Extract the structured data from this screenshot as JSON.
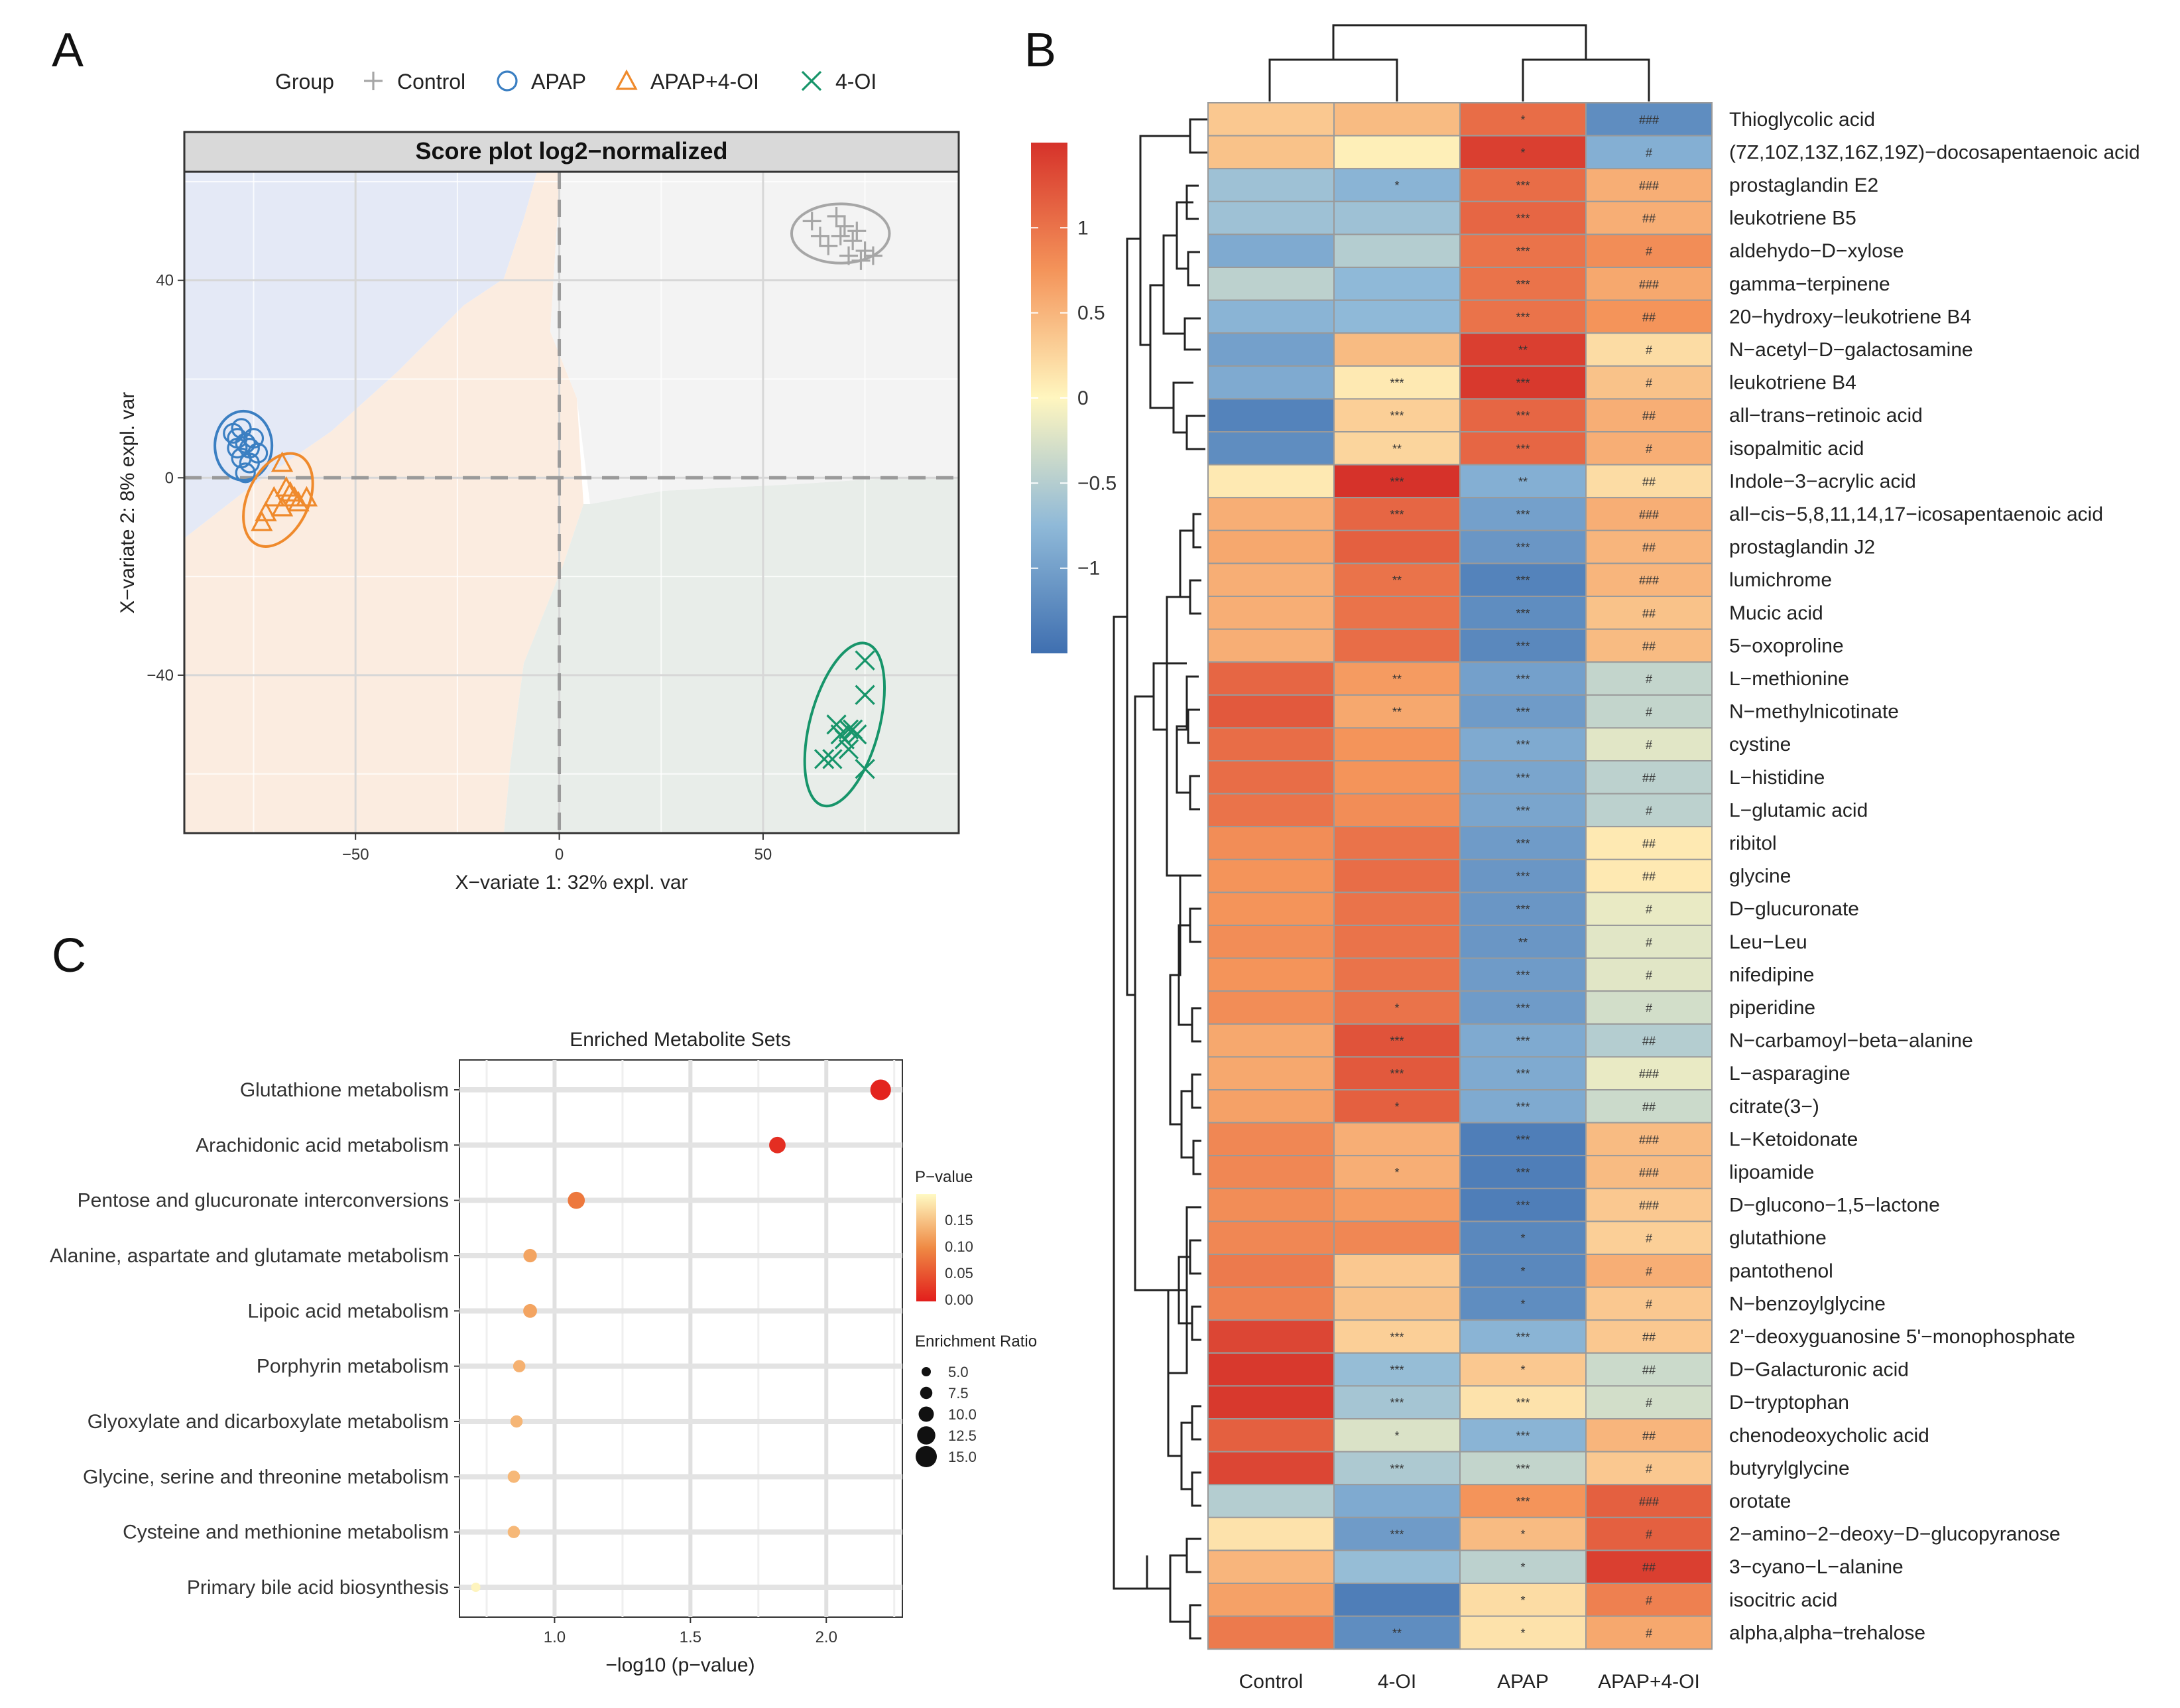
{
  "panels": {
    "a": "A",
    "b": "B",
    "c": "C"
  },
  "pca": {
    "legend_title": "Group",
    "groups": [
      {
        "name": "Control",
        "marker": "plus",
        "color": "#a6a6a6"
      },
      {
        "name": "APAP",
        "marker": "circle",
        "color": "#3b7fc2"
      },
      {
        "name": "APAP+4-OI",
        "marker": "triangle",
        "color": "#ef8a2c"
      },
      {
        "name": "4-OI",
        "marker": "cross",
        "color": "#17956a"
      }
    ],
    "title": "Score plot log2−normalized",
    "xlabel": "X−variate 1: 32% expl. var",
    "ylabel": "X−variate 2: 8% expl. var",
    "xlim": [
      -92,
      98
    ],
    "ylim": [
      -72,
      62
    ],
    "xticks": [
      -50,
      0,
      50
    ],
    "yticks": [
      40,
      0,
      -40
    ],
    "xtick_labels": [
      "−50",
      "0",
      "50"
    ],
    "ytick_labels": [
      "40",
      "0",
      "−40"
    ],
    "points": {
      "Control": [
        [
          62,
          52
        ],
        [
          64,
          49
        ],
        [
          66,
          47
        ],
        [
          68,
          53
        ],
        [
          70,
          51
        ],
        [
          72,
          48
        ],
        [
          73,
          50
        ],
        [
          75,
          46
        ],
        [
          71,
          45
        ],
        [
          74,
          44
        ],
        [
          77,
          45
        ],
        [
          69,
          49
        ]
      ],
      "APAP": [
        [
          -80,
          9
        ],
        [
          -79,
          6
        ],
        [
          -78,
          10
        ],
        [
          -78,
          4
        ],
        [
          -77,
          7
        ],
        [
          -76,
          3
        ],
        [
          -75,
          8
        ],
        [
          -76,
          6
        ],
        [
          -74,
          5
        ],
        [
          -77,
          1
        ],
        [
          -79,
          8
        ]
      ],
      "APAP+4-OI": [
        [
          -68,
          3
        ],
        [
          -70,
          -4
        ],
        [
          -72,
          -7
        ],
        [
          -68,
          -6
        ],
        [
          -66,
          -3
        ],
        [
          -64,
          -5
        ],
        [
          -62,
          -4
        ],
        [
          -73,
          -9
        ],
        [
          -67,
          -2
        ],
        [
          -65,
          -4
        ]
      ],
      "4-OI": [
        [
          75,
          -37
        ],
        [
          75,
          -44
        ],
        [
          65,
          -57
        ],
        [
          67,
          -57
        ],
        [
          70,
          -53
        ],
        [
          71,
          -51
        ],
        [
          69,
          -52
        ],
        [
          72,
          -51
        ],
        [
          71,
          -55
        ],
        [
          73,
          -52
        ],
        [
          75,
          -59
        ],
        [
          68,
          -50
        ]
      ]
    },
    "ellipses": {
      "Control": {
        "cx": 69,
        "cy": 49.5,
        "rx": 12,
        "ry": 6,
        "angle": 0
      },
      "APAP": {
        "cx": -77.5,
        "cy": 6.5,
        "rx": 7,
        "ry": 7,
        "angle": 0
      },
      "APAP+4-OI": {
        "cx": -69,
        "cy": -4.5,
        "rx": 7.5,
        "ry": 10,
        "angle": 25
      },
      "4-OI": {
        "cx": 70,
        "cy": -50,
        "rx": 8.5,
        "ry": 17,
        "angle": 15
      }
    }
  },
  "heatmap": {
    "columns": [
      "Control",
      "4-OI",
      "APAP",
      "APAP+4-OI"
    ],
    "colorbar": {
      "min": -1.5,
      "max": 1.5,
      "ticks": [
        1,
        0.5,
        0,
        -0.5,
        -1
      ],
      "tick_labels": [
        "1",
        "0.5",
        "0",
        "−0.5",
        "−1"
      ]
    },
    "rows": [
      {
        "name": "Thioglycolic acid",
        "values": [
          0.35,
          0.45,
          1.05,
          -1.2
        ],
        "marks": [
          "",
          "",
          "*",
          "###"
        ]
      },
      {
        "name": "(7Z,10Z,13Z,16Z,19Z)−docosapentaenoic acid",
        "values": [
          0.4,
          0.05,
          1.4,
          -0.85
        ],
        "marks": [
          "",
          "",
          "*",
          "#"
        ]
      },
      {
        "name": "prostaglandin E2",
        "values": [
          -0.65,
          -0.8,
          1.05,
          0.55
        ],
        "marks": [
          "",
          "*",
          "***",
          "###"
        ]
      },
      {
        "name": "leukotriene B5",
        "values": [
          -0.65,
          -0.65,
          1.1,
          0.55
        ],
        "marks": [
          "",
          "",
          "***",
          "##"
        ]
      },
      {
        "name": "aldehydo−D−xylose",
        "values": [
          -0.9,
          -0.5,
          1.0,
          0.8
        ],
        "marks": [
          "",
          "",
          "***",
          "#"
        ]
      },
      {
        "name": "gamma−terpinene",
        "values": [
          -0.45,
          -0.75,
          1.0,
          0.6
        ],
        "marks": [
          "",
          "",
          "***",
          "###"
        ]
      },
      {
        "name": "20−hydroxy−leukotriene B4",
        "values": [
          -0.8,
          -0.75,
          1.0,
          0.75
        ],
        "marks": [
          "",
          "",
          "***",
          "##"
        ]
      },
      {
        "name": "N−acetyl−D−galactosamine",
        "values": [
          -1.0,
          0.45,
          1.4,
          0.2
        ],
        "marks": [
          "",
          "",
          "**",
          "#"
        ]
      },
      {
        "name": "leukotriene B4",
        "values": [
          -0.9,
          0.1,
          1.45,
          0.4
        ],
        "marks": [
          "",
          "***",
          "***",
          "#"
        ]
      },
      {
        "name": "all−trans−retinoic acid",
        "values": [
          -1.3,
          0.3,
          1.1,
          0.55
        ],
        "marks": [
          "",
          "***",
          "***",
          "##"
        ]
      },
      {
        "name": "isopalmitic acid",
        "values": [
          -1.2,
          0.25,
          1.1,
          0.55
        ],
        "marks": [
          "",
          "**",
          "***",
          "#"
        ]
      },
      {
        "name": "Indole−3−acrylic acid",
        "values": [
          0.1,
          1.5,
          -0.85,
          0.2
        ],
        "marks": [
          "",
          "***",
          "**",
          "##"
        ]
      },
      {
        "name": "all−cis−5,8,11,14,17−icosapentaenoic acid",
        "values": [
          0.55,
          1.1,
          -1.0,
          0.55
        ],
        "marks": [
          "",
          "***",
          "***",
          "###"
        ]
      },
      {
        "name": "prostaglandin J2",
        "values": [
          0.6,
          1.15,
          -1.1,
          0.5
        ],
        "marks": [
          "",
          "",
          "***",
          "##"
        ]
      },
      {
        "name": "lumichrome",
        "values": [
          0.55,
          1.0,
          -1.3,
          0.5
        ],
        "marks": [
          "",
          "**",
          "***",
          "###"
        ]
      },
      {
        "name": "Mucic acid",
        "values": [
          0.55,
          1.0,
          -1.2,
          0.4
        ],
        "marks": [
          "",
          "",
          "***",
          "##"
        ]
      },
      {
        "name": "5−oxoproline",
        "values": [
          0.55,
          1.05,
          -1.25,
          0.45
        ],
        "marks": [
          "",
          "",
          "***",
          "##"
        ]
      },
      {
        "name": "L−methionine",
        "values": [
          1.1,
          0.7,
          -1.0,
          -0.4
        ],
        "marks": [
          "",
          "**",
          "***",
          "#"
        ]
      },
      {
        "name": "N−methylnicotinate",
        "values": [
          1.2,
          0.6,
          -1.05,
          -0.4
        ],
        "marks": [
          "",
          "**",
          "***",
          "#"
        ]
      },
      {
        "name": "cystine",
        "values": [
          1.05,
          0.75,
          -0.9,
          -0.2
        ],
        "marks": [
          "",
          "",
          "***",
          "#"
        ]
      },
      {
        "name": "L−histidine",
        "values": [
          1.05,
          0.75,
          -0.95,
          -0.45
        ],
        "marks": [
          "",
          "",
          "***",
          "##"
        ]
      },
      {
        "name": "L−glutamic acid",
        "values": [
          1.0,
          0.8,
          -0.95,
          -0.45
        ],
        "marks": [
          "",
          "",
          "***",
          "#"
        ]
      },
      {
        "name": "ribitol",
        "values": [
          0.8,
          1.0,
          -1.05,
          0.1
        ],
        "marks": [
          "",
          "",
          "***",
          "##"
        ]
      },
      {
        "name": "glycine",
        "values": [
          0.75,
          1.05,
          -1.1,
          0.1
        ],
        "marks": [
          "",
          "",
          "***",
          "##"
        ]
      },
      {
        "name": "D−glucuronate",
        "values": [
          0.75,
          1.0,
          -1.1,
          -0.15
        ],
        "marks": [
          "",
          "",
          "***",
          "#"
        ]
      },
      {
        "name": "Leu−Leu",
        "values": [
          0.8,
          1.0,
          -1.1,
          -0.2
        ],
        "marks": [
          "",
          "",
          "**",
          "#"
        ]
      },
      {
        "name": "nifedipine",
        "values": [
          0.75,
          1.0,
          -1.05,
          -0.2
        ],
        "marks": [
          "",
          "",
          "***",
          "#"
        ]
      },
      {
        "name": "piperidine",
        "values": [
          0.8,
          1.0,
          -1.05,
          -0.3
        ],
        "marks": [
          "",
          "*",
          "***",
          "#"
        ]
      },
      {
        "name": "N−carbamoyl−beta−alanine",
        "values": [
          0.6,
          1.25,
          -0.9,
          -0.5
        ],
        "marks": [
          "",
          "***",
          "***",
          "##"
        ]
      },
      {
        "name": "L−asparagine",
        "values": [
          0.6,
          1.2,
          -0.9,
          -0.15
        ],
        "marks": [
          "",
          "***",
          "***",
          "###"
        ]
      },
      {
        "name": "citrate(3−)",
        "values": [
          0.65,
          1.15,
          -0.9,
          -0.35
        ],
        "marks": [
          "",
          "*",
          "***",
          "##"
        ]
      },
      {
        "name": "L−Ketoidonate",
        "values": [
          0.85,
          0.55,
          -1.35,
          0.45
        ],
        "marks": [
          "",
          "",
          "***",
          "###"
        ]
      },
      {
        "name": "lipoamide",
        "values": [
          0.85,
          0.55,
          -1.35,
          0.45
        ],
        "marks": [
          "",
          "*",
          "***",
          "###"
        ]
      },
      {
        "name": "D−glucono−1,5−lactone",
        "values": [
          0.8,
          0.7,
          -1.35,
          0.35
        ],
        "marks": [
          "",
          "",
          "***",
          "###"
        ]
      },
      {
        "name": "glutathione",
        "values": [
          0.85,
          0.85,
          -1.25,
          0.3
        ],
        "marks": [
          "",
          "",
          "*",
          "#"
        ]
      },
      {
        "name": "pantothenol",
        "values": [
          0.95,
          0.35,
          -1.25,
          0.55
        ],
        "marks": [
          "",
          "",
          "*",
          "#"
        ]
      },
      {
        "name": "N−benzoylglycine",
        "values": [
          0.9,
          0.4,
          -1.2,
          0.35
        ],
        "marks": [
          "",
          "",
          "*",
          "#"
        ]
      },
      {
        "name": "2'−deoxyguanosine 5'−monophosphate",
        "values": [
          1.35,
          0.3,
          -0.8,
          0.35
        ],
        "marks": [
          "",
          "***",
          "***",
          "##"
        ]
      },
      {
        "name": "D−Galacturonic acid",
        "values": [
          1.45,
          -0.7,
          0.35,
          -0.35
        ],
        "marks": [
          "",
          "***",
          "*",
          "##"
        ]
      },
      {
        "name": "D−tryptophan",
        "values": [
          1.45,
          -0.6,
          0.15,
          -0.3
        ],
        "marks": [
          "",
          "***",
          "***",
          "#"
        ]
      },
      {
        "name": "chenodeoxycholic acid",
        "values": [
          1.15,
          -0.25,
          -0.8,
          0.5
        ],
        "marks": [
          "",
          "*",
          "***",
          "##"
        ]
      },
      {
        "name": "butyrylglycine",
        "values": [
          1.35,
          -0.55,
          -0.4,
          0.35
        ],
        "marks": [
          "",
          "***",
          "***",
          "#"
        ]
      },
      {
        "name": "orotate",
        "values": [
          -0.5,
          -0.9,
          0.75,
          1.15
        ],
        "marks": [
          "",
          "",
          "***",
          "###"
        ]
      },
      {
        "name": "2−amino−2−deoxy−D−glucopyranose",
        "values": [
          0.15,
          -1.05,
          0.45,
          1.15
        ],
        "marks": [
          "",
          "***",
          "*",
          "#"
        ]
      },
      {
        "name": "3−cyano−L−alanine",
        "values": [
          0.5,
          -0.7,
          -0.45,
          1.4
        ],
        "marks": [
          "",
          "",
          "*",
          "##"
        ]
      },
      {
        "name": "isocitric acid",
        "values": [
          0.65,
          -1.35,
          0.2,
          0.9
        ],
        "marks": [
          "",
          "",
          "*",
          "#"
        ]
      },
      {
        "name": "alpha,alpha−trehalose",
        "values": [
          0.95,
          -1.2,
          0.15,
          0.6
        ],
        "marks": [
          "",
          "**",
          "*",
          "#"
        ]
      }
    ]
  },
  "chart_data": [
    {
      "type": "scatter",
      "title": "Score plot log2−normalized",
      "xlabel": "X−variate 1: 32% expl. var",
      "ylabel": "X−variate 2: 8% expl. var",
      "xlim": [
        -92,
        98
      ],
      "ylim": [
        -72,
        62
      ],
      "series": [
        {
          "name": "Control",
          "centroid": [
            70,
            49
          ]
        },
        {
          "name": "APAP",
          "centroid": [
            -77,
            6
          ]
        },
        {
          "name": "APAP+4-OI",
          "centroid": [
            -68,
            -4
          ]
        },
        {
          "name": "4-OI",
          "centroid": [
            71,
            -51
          ]
        }
      ]
    },
    {
      "type": "heatmap",
      "title": "",
      "x": [
        "Control",
        "4-OI",
        "APAP",
        "APAP+4-OI"
      ],
      "note": "row z-scores, see heatmap.rows"
    },
    {
      "type": "scatter",
      "title": "Enriched Metabolite Sets",
      "xlabel": "−log10 (p−value)",
      "ylabel": "",
      "xlim": [
        0.65,
        2.28
      ],
      "categories": [
        "Glutathione metabolism",
        "Arachidonic acid metabolism",
        "Pentose and glucuronate interconversions",
        "Alanine, aspartate and glutamate metabolism",
        "Lipoic acid metabolism",
        "Porphyrin metabolism",
        "Glyoxylate and dicarboxylate metabolism",
        "Glycine, serine and threonine metabolism",
        "Cysteine and methionine metabolism",
        "Primary bile acid biosynthesis"
      ],
      "neg_log10_p": [
        2.2,
        1.82,
        1.08,
        0.91,
        0.91,
        0.87,
        0.86,
        0.85,
        0.85,
        0.71
      ],
      "p_value": [
        0.006,
        0.015,
        0.083,
        0.123,
        0.123,
        0.135,
        0.138,
        0.141,
        0.141,
        0.195
      ],
      "enrichment_ratio": [
        14.5,
        11.0,
        11.5,
        8.5,
        8.8,
        7.5,
        7.5,
        7.5,
        7.5,
        5.0
      ],
      "xticks": [
        1.0,
        1.5,
        2.0
      ],
      "xtick_labels": [
        "1.0",
        "1.5",
        "2.0"
      ],
      "legend": {
        "pvalue_title": "P−value",
        "pvalue_ticks": [
          "0.15",
          "0.10",
          "0.05",
          "0.00"
        ],
        "ratio_title": "Enrichment Ratio",
        "ratio_ticks": [
          "5.0",
          "7.5",
          "10.0",
          "12.5",
          "15.0"
        ]
      }
    }
  ]
}
